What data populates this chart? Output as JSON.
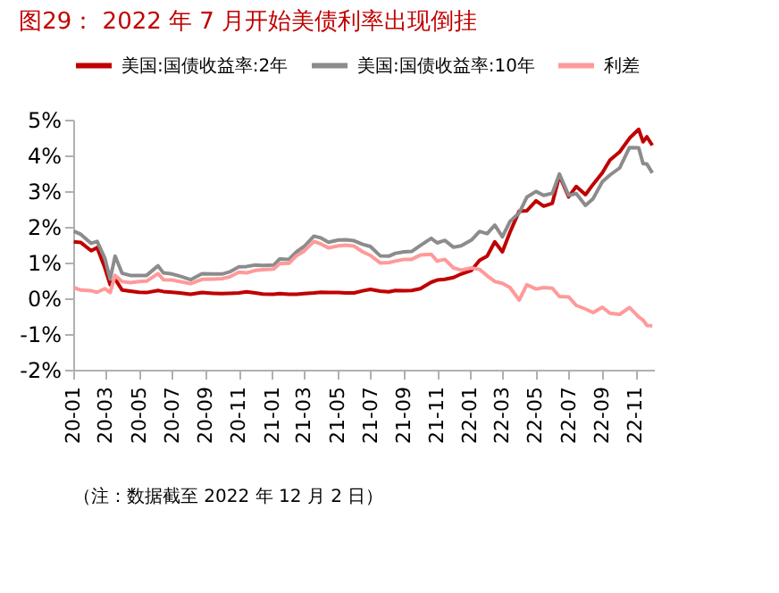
{
  "chart_data": {
    "type": "line",
    "title": "图29：  2022 年 7 月开始美债利率出现倒挂",
    "annotations": [
      "（注：数据截至 2022 年 12 月 2 日）"
    ],
    "x": [
      "2020-01-02",
      "2020-01-15",
      "2020-02-03",
      "2020-02-14",
      "2020-02-28",
      "2020-03-09",
      "2020-03-18",
      "2020-03-31",
      "2020-04-15",
      "2020-05-01",
      "2020-05-15",
      "2020-06-05",
      "2020-06-15",
      "2020-07-01",
      "2020-07-15",
      "2020-08-04",
      "2020-08-25",
      "2020-09-15",
      "2020-10-01",
      "2020-10-15",
      "2020-11-01",
      "2020-11-15",
      "2020-12-01",
      "2020-12-15",
      "2021-01-04",
      "2021-01-15",
      "2021-02-01",
      "2021-02-15",
      "2021-03-01",
      "2021-03-19",
      "2021-04-01",
      "2021-04-15",
      "2021-05-03",
      "2021-05-17",
      "2021-06-01",
      "2021-06-17",
      "2021-07-01",
      "2021-07-19",
      "2021-08-04",
      "2021-08-16",
      "2021-09-01",
      "2021-09-15",
      "2021-10-01",
      "2021-10-21",
      "2021-11-01",
      "2021-11-15",
      "2021-12-01",
      "2021-12-15",
      "2022-01-03",
      "2022-01-18",
      "2022-02-01",
      "2022-02-15",
      "2022-03-01",
      "2022-03-15",
      "2022-04-01",
      "2022-04-15",
      "2022-05-02",
      "2022-05-16",
      "2022-06-01",
      "2022-06-14",
      "2022-07-01",
      "2022-07-15",
      "2022-08-01",
      "2022-08-15",
      "2022-09-01",
      "2022-09-15",
      "2022-10-03",
      "2022-10-21",
      "2022-11-07",
      "2022-11-15",
      "2022-11-22",
      "2022-12-02"
    ],
    "series": [
      {
        "name": "美国:国债收益率:2年",
        "color": "#c00000",
        "values": [
          1.58,
          1.56,
          1.33,
          1.42,
          0.86,
          0.38,
          0.54,
          0.23,
          0.2,
          0.17,
          0.16,
          0.22,
          0.19,
          0.17,
          0.15,
          0.11,
          0.16,
          0.14,
          0.13,
          0.14,
          0.15,
          0.18,
          0.15,
          0.12,
          0.11,
          0.13,
          0.11,
          0.11,
          0.13,
          0.15,
          0.17,
          0.16,
          0.16,
          0.15,
          0.15,
          0.21,
          0.25,
          0.2,
          0.18,
          0.22,
          0.21,
          0.22,
          0.27,
          0.45,
          0.51,
          0.53,
          0.58,
          0.68,
          0.78,
          1.06,
          1.18,
          1.58,
          1.3,
          1.85,
          2.44,
          2.45,
          2.73,
          2.58,
          2.66,
          3.43,
          2.84,
          3.13,
          2.9,
          3.19,
          3.51,
          3.87,
          4.1,
          4.48,
          4.73,
          4.38,
          4.52,
          4.28
        ]
      },
      {
        "name": "美国:国债收益率:10年",
        "color": "#8c8c8c",
        "values": [
          1.88,
          1.79,
          1.54,
          1.59,
          1.13,
          0.54,
          1.18,
          0.7,
          0.64,
          0.64,
          0.64,
          0.91,
          0.71,
          0.68,
          0.62,
          0.52,
          0.69,
          0.68,
          0.68,
          0.74,
          0.88,
          0.89,
          0.93,
          0.92,
          0.93,
          1.1,
          1.09,
          1.3,
          1.45,
          1.74,
          1.69,
          1.57,
          1.63,
          1.64,
          1.61,
          1.51,
          1.45,
          1.19,
          1.18,
          1.26,
          1.3,
          1.31,
          1.48,
          1.68,
          1.55,
          1.62,
          1.43,
          1.47,
          1.63,
          1.87,
          1.81,
          2.05,
          1.72,
          2.15,
          2.39,
          2.83,
          2.99,
          2.88,
          2.94,
          3.48,
          2.88,
          2.93,
          2.6,
          2.79,
          3.26,
          3.45,
          3.65,
          4.22,
          4.21,
          3.77,
          3.76,
          3.51
        ]
      },
      {
        "name": "利差",
        "color": "#ff9a9a",
        "values": [
          0.3,
          0.23,
          0.21,
          0.17,
          0.27,
          0.16,
          0.64,
          0.47,
          0.44,
          0.47,
          0.48,
          0.69,
          0.52,
          0.51,
          0.47,
          0.41,
          0.53,
          0.54,
          0.55,
          0.6,
          0.73,
          0.71,
          0.78,
          0.8,
          0.82,
          0.97,
          0.98,
          1.19,
          1.32,
          1.59,
          1.52,
          1.41,
          1.47,
          1.49,
          1.46,
          1.3,
          1.2,
          0.99,
          1.0,
          1.04,
          1.09,
          1.09,
          1.21,
          1.23,
          1.04,
          1.09,
          0.85,
          0.79,
          0.85,
          0.81,
          0.63,
          0.47,
          0.42,
          0.3,
          -0.05,
          0.38,
          0.26,
          0.3,
          0.28,
          0.05,
          0.04,
          -0.2,
          -0.3,
          -0.4,
          -0.25,
          -0.42,
          -0.45,
          -0.26,
          -0.52,
          -0.61,
          -0.76,
          -0.77
        ]
      }
    ],
    "xlim": [
      "2020-01-01",
      "2022-12-05"
    ],
    "xticks": [
      {
        "value": "2020-01-01",
        "label": "20-01"
      },
      {
        "value": "2020-03-01",
        "label": "20-03"
      },
      {
        "value": "2020-05-01",
        "label": "20-05"
      },
      {
        "value": "2020-07-01",
        "label": "20-07"
      },
      {
        "value": "2020-09-01",
        "label": "20-09"
      },
      {
        "value": "2020-11-01",
        "label": "20-11"
      },
      {
        "value": "2021-01-01",
        "label": "21-01"
      },
      {
        "value": "2021-03-01",
        "label": "21-03"
      },
      {
        "value": "2021-05-01",
        "label": "21-05"
      },
      {
        "value": "2021-07-01",
        "label": "21-07"
      },
      {
        "value": "2021-09-01",
        "label": "21-09"
      },
      {
        "value": "2021-11-01",
        "label": "21-11"
      },
      {
        "value": "2022-01-01",
        "label": "22-01"
      },
      {
        "value": "2022-03-01",
        "label": "22-03"
      },
      {
        "value": "2022-05-01",
        "label": "22-05"
      },
      {
        "value": "2022-07-01",
        "label": "22-07"
      },
      {
        "value": "2022-09-01",
        "label": "22-09"
      },
      {
        "value": "2022-11-01",
        "label": "22-11"
      }
    ],
    "ylim": [
      -2,
      5
    ],
    "yticks": [
      {
        "value": -2,
        "label": "-2%"
      },
      {
        "value": -1,
        "label": "-1%"
      },
      {
        "value": 0,
        "label": "0%"
      },
      {
        "value": 1,
        "label": "1%"
      },
      {
        "value": 2,
        "label": "2%"
      },
      {
        "value": 3,
        "label": "3%"
      },
      {
        "value": 4,
        "label": "4%"
      },
      {
        "value": 5,
        "label": "5%"
      }
    ],
    "legend": "top",
    "grid": false,
    "line_style": "solid",
    "marker": "none"
  }
}
